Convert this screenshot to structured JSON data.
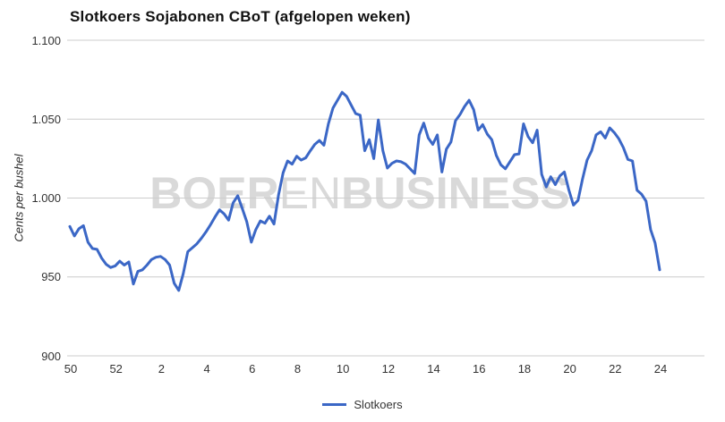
{
  "chart_data": {
    "type": "line",
    "title": "Slotkoers Sojabonen CBoT (afgelopen weken)",
    "ylabel": "Cents per bushel",
    "xlabel": "",
    "legend_label": "Slotkoers",
    "legend_position": "bottom-center",
    "grid": true,
    "ylim": [
      900,
      1100
    ],
    "y_ticks": [
      {
        "value": 1100,
        "label": "1.100"
      },
      {
        "value": 1050,
        "label": "1.050"
      },
      {
        "value": 1000,
        "label": "1.000"
      },
      {
        "value": 950,
        "label": "950"
      },
      {
        "value": 900,
        "label": "900"
      }
    ],
    "x_tick_labels": [
      "50",
      "52",
      "2",
      "4",
      "6",
      "8",
      "10",
      "12",
      "14",
      "16",
      "18",
      "20",
      "22",
      "24"
    ],
    "x_tick_meaning": "weeknummer",
    "series": [
      {
        "name": "Slotkoers",
        "color": "#3B67C6",
        "values": [
          982,
          976,
          980.5,
          982.5,
          972,
          968,
          967.5,
          962,
          958,
          956,
          957,
          960,
          957.5,
          959.5,
          945.5,
          953.5,
          954.5,
          957.5,
          961,
          962.5,
          963,
          961,
          957.5,
          946,
          941.5,
          952,
          966,
          968.5,
          971,
          974.5,
          978.5,
          983,
          988,
          992.5,
          990,
          986,
          997,
          1001.5,
          993.5,
          985,
          972,
          980,
          985.5,
          984,
          988.5,
          983.5,
          1002,
          1016,
          1023.5,
          1021.5,
          1026.5,
          1024,
          1025.5,
          1030,
          1034,
          1036.5,
          1033.5,
          1047,
          1057,
          1062,
          1067,
          1064.5,
          1059,
          1053.5,
          1052.5,
          1030,
          1037,
          1025,
          1049.5,
          1030,
          1019,
          1022,
          1023.5,
          1023,
          1021.5,
          1018.5,
          1015.5,
          1040,
          1047.5,
          1038,
          1034,
          1040,
          1016.5,
          1031,
          1035.5,
          1049,
          1053,
          1058,
          1062,
          1056,
          1043,
          1046.5,
          1040.5,
          1037,
          1027,
          1021,
          1018.5,
          1023,
          1027.5,
          1028,
          1047,
          1039,
          1035,
          1043,
          1015,
          1007,
          1013.5,
          1008.5,
          1014,
          1016.5,
          1005,
          995.5,
          998.5,
          1012,
          1024,
          1030,
          1040,
          1042,
          1038,
          1044.5,
          1041.5,
          1037.5,
          1032,
          1024.5,
          1023.5,
          1005,
          1002.5,
          998,
          980,
          971.5,
          954.5
        ]
      }
    ],
    "colors": {
      "line": "#3B67C6",
      "gridline": "#cccccc",
      "tick_label": "#333333",
      "title": "#111111",
      "watermark": "#d9d9d9"
    }
  },
  "watermark": {
    "part1": "BOER",
    "part2": "EN",
    "part3": "BUSINESS"
  }
}
